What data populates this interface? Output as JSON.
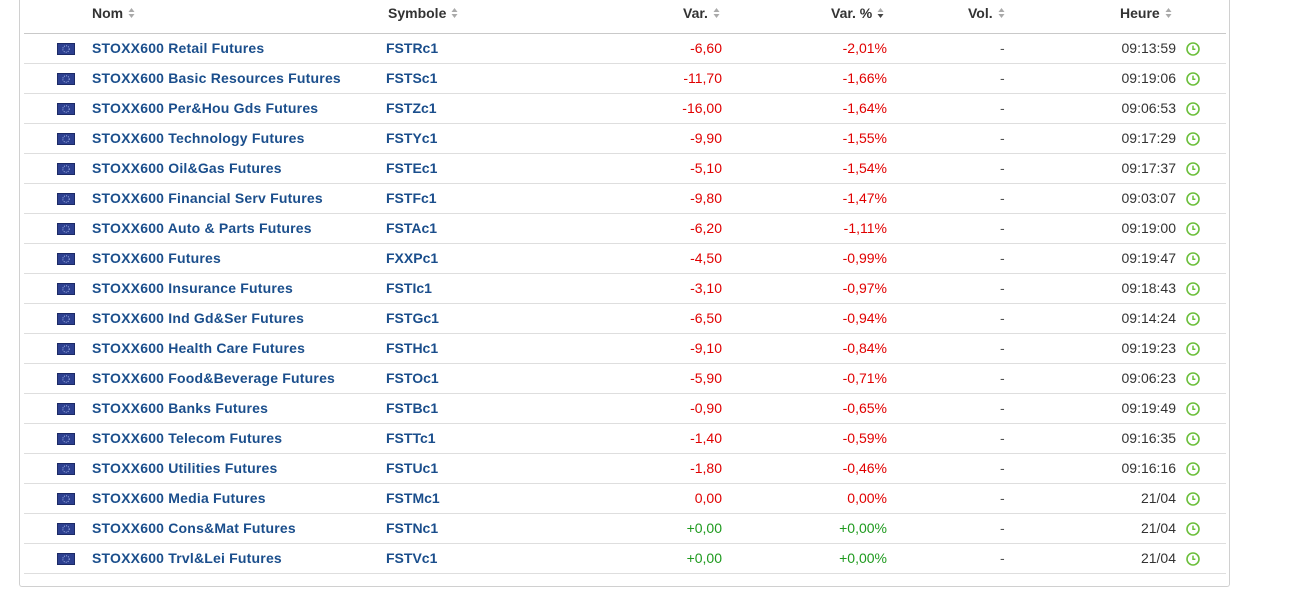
{
  "colors": {
    "negative": "#e00000",
    "positive": "#1e9a1e",
    "link": "#1a4e8c",
    "clock": "#6cbf3c"
  },
  "header": {
    "nom": "Nom",
    "symbole": "Symbole",
    "var": "Var.",
    "varpct": "Var. %",
    "vol": "Vol.",
    "heure": "Heure"
  },
  "rows": [
    {
      "name": "STOXX600 Retail Futures",
      "symbol": "FSTRc1",
      "var": "-6,60",
      "varpct": "-2,01%",
      "vol": "-",
      "time": "09:13:59",
      "trend": "neg"
    },
    {
      "name": "STOXX600 Basic Resources Futures",
      "symbol": "FSTSc1",
      "var": "-11,70",
      "varpct": "-1,66%",
      "vol": "-",
      "time": "09:19:06",
      "trend": "neg"
    },
    {
      "name": "STOXX600 Per&Hou Gds Futures",
      "symbol": "FSTZc1",
      "var": "-16,00",
      "varpct": "-1,64%",
      "vol": "-",
      "time": "09:06:53",
      "trend": "neg"
    },
    {
      "name": "STOXX600 Technology Futures",
      "symbol": "FSTYc1",
      "var": "-9,90",
      "varpct": "-1,55%",
      "vol": "-",
      "time": "09:17:29",
      "trend": "neg"
    },
    {
      "name": "STOXX600 Oil&Gas Futures",
      "symbol": "FSTEc1",
      "var": "-5,10",
      "varpct": "-1,54%",
      "vol": "-",
      "time": "09:17:37",
      "trend": "neg"
    },
    {
      "name": "STOXX600 Financial Serv Futures",
      "symbol": "FSTFc1",
      "var": "-9,80",
      "varpct": "-1,47%",
      "vol": "-",
      "time": "09:03:07",
      "trend": "neg"
    },
    {
      "name": "STOXX600 Auto & Parts Futures",
      "symbol": "FSTAc1",
      "var": "-6,20",
      "varpct": "-1,11%",
      "vol": "-",
      "time": "09:19:00",
      "trend": "neg"
    },
    {
      "name": "STOXX600 Futures",
      "symbol": "FXXPc1",
      "var": "-4,50",
      "varpct": "-0,99%",
      "vol": "-",
      "time": "09:19:47",
      "trend": "neg"
    },
    {
      "name": "STOXX600 Insurance Futures",
      "symbol": "FSTIc1",
      "var": "-3,10",
      "varpct": "-0,97%",
      "vol": "-",
      "time": "09:18:43",
      "trend": "neg"
    },
    {
      "name": "STOXX600 Ind Gd&Ser Futures",
      "symbol": "FSTGc1",
      "var": "-6,50",
      "varpct": "-0,94%",
      "vol": "-",
      "time": "09:14:24",
      "trend": "neg"
    },
    {
      "name": "STOXX600 Health Care Futures",
      "symbol": "FSTHc1",
      "var": "-9,10",
      "varpct": "-0,84%",
      "vol": "-",
      "time": "09:19:23",
      "trend": "neg"
    },
    {
      "name": "STOXX600 Food&Beverage Futures",
      "symbol": "FSTOc1",
      "var": "-5,90",
      "varpct": "-0,71%",
      "vol": "-",
      "time": "09:06:23",
      "trend": "neg"
    },
    {
      "name": "STOXX600 Banks Futures",
      "symbol": "FSTBc1",
      "var": "-0,90",
      "varpct": "-0,65%",
      "vol": "-",
      "time": "09:19:49",
      "trend": "neg"
    },
    {
      "name": "STOXX600 Telecom Futures",
      "symbol": "FSTTc1",
      "var": "-1,40",
      "varpct": "-0,59%",
      "vol": "-",
      "time": "09:16:35",
      "trend": "neg"
    },
    {
      "name": "STOXX600 Utilities Futures",
      "symbol": "FSTUc1",
      "var": "-1,80",
      "varpct": "-0,46%",
      "vol": "-",
      "time": "09:16:16",
      "trend": "neg"
    },
    {
      "name": "STOXX600 Media Futures",
      "symbol": "FSTMc1",
      "var": "0,00",
      "varpct": "0,00%",
      "vol": "-",
      "time": "21/04",
      "trend": "neg"
    },
    {
      "name": "STOXX600 Cons&Mat Futures",
      "symbol": "FSTNc1",
      "var": "+0,00",
      "varpct": "+0,00%",
      "vol": "-",
      "time": "21/04",
      "trend": "pos"
    },
    {
      "name": "STOXX600 Trvl&Lei Futures",
      "symbol": "FSTVc1",
      "var": "+0,00",
      "varpct": "+0,00%",
      "vol": "-",
      "time": "21/04",
      "trend": "pos"
    }
  ]
}
